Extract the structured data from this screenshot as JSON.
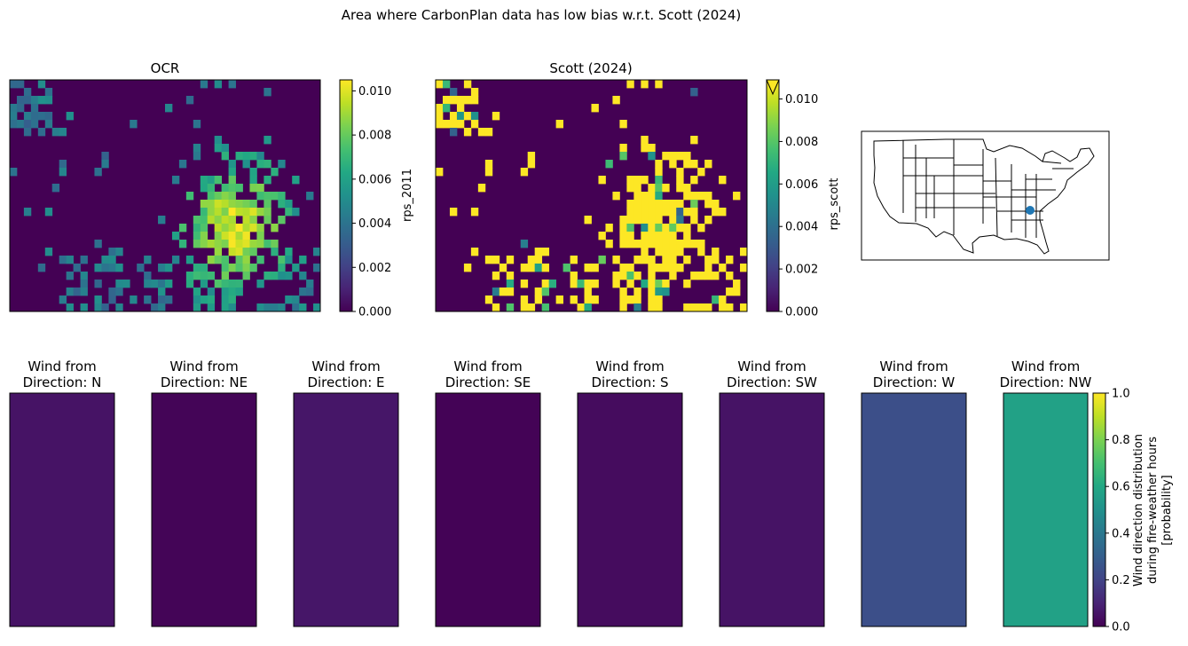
{
  "figure": {
    "suptitle": "Area where CarbonPlan data has low bias w.r.t. Scott (2024)"
  },
  "colors": {
    "viridis_stops": [
      "#440154",
      "#482475",
      "#414487",
      "#355f8d",
      "#2a788e",
      "#21918c",
      "#22a884",
      "#44bf70",
      "#7ad151",
      "#bddf26",
      "#fde725"
    ],
    "map_point": "#1f77b4"
  },
  "chart_data": [
    {
      "type": "heatmap",
      "title": "OCR",
      "colorbar_label": "rps_2011",
      "vmin": 0.0,
      "vmax": 0.0105,
      "ticks": [
        "0.000",
        "0.002",
        "0.004",
        "0.006",
        "0.008",
        "0.010"
      ],
      "tick_values": [
        0,
        0.002,
        0.004,
        0.006,
        0.008,
        0.01
      ],
      "grid": [
        44,
        29
      ],
      "extend_max": false
    },
    {
      "type": "heatmap",
      "title": "Scott (2024)",
      "colorbar_label": "rps_scott",
      "vmin": 0.0,
      "vmax": 0.0109,
      "ticks": [
        "0.000",
        "0.002",
        "0.004",
        "0.006",
        "0.008",
        "0.010"
      ],
      "tick_values": [
        0,
        0.002,
        0.004,
        0.006,
        0.008,
        0.01
      ],
      "grid": [
        44,
        29
      ],
      "extend_max": true
    },
    {
      "type": "map",
      "region": "CONUS state boundaries",
      "marker": "point near the Georgia/Alabama/Tennessee border"
    },
    {
      "type": "heatmap",
      "panels": [
        {
          "title": "Wind from\nDirection: N",
          "value": 0.05
        },
        {
          "title": "Wind from\nDirection: NE",
          "value": 0.01
        },
        {
          "title": "Wind from\nDirection: E",
          "value": 0.06
        },
        {
          "title": "Wind from\nDirection: SE",
          "value": 0.005
        },
        {
          "title": "Wind from\nDirection: S",
          "value": 0.03
        },
        {
          "title": "Wind from\nDirection: SW",
          "value": 0.05
        },
        {
          "title": "Wind from\nDirection: W",
          "value": 0.24
        },
        {
          "title": "Wind from\nDirection: NW",
          "value": 0.57
        }
      ],
      "colorbar_label": [
        "Wind direction distribution",
        "during fire-weather hours",
        "[probability]"
      ],
      "vmin": 0.0,
      "vmax": 1.0,
      "ticks": [
        "0.0",
        "0.2",
        "0.4",
        "0.6",
        "0.8",
        "1.0"
      ],
      "tick_values": [
        0,
        0.2,
        0.4,
        0.6,
        0.8,
        1.0
      ]
    }
  ]
}
